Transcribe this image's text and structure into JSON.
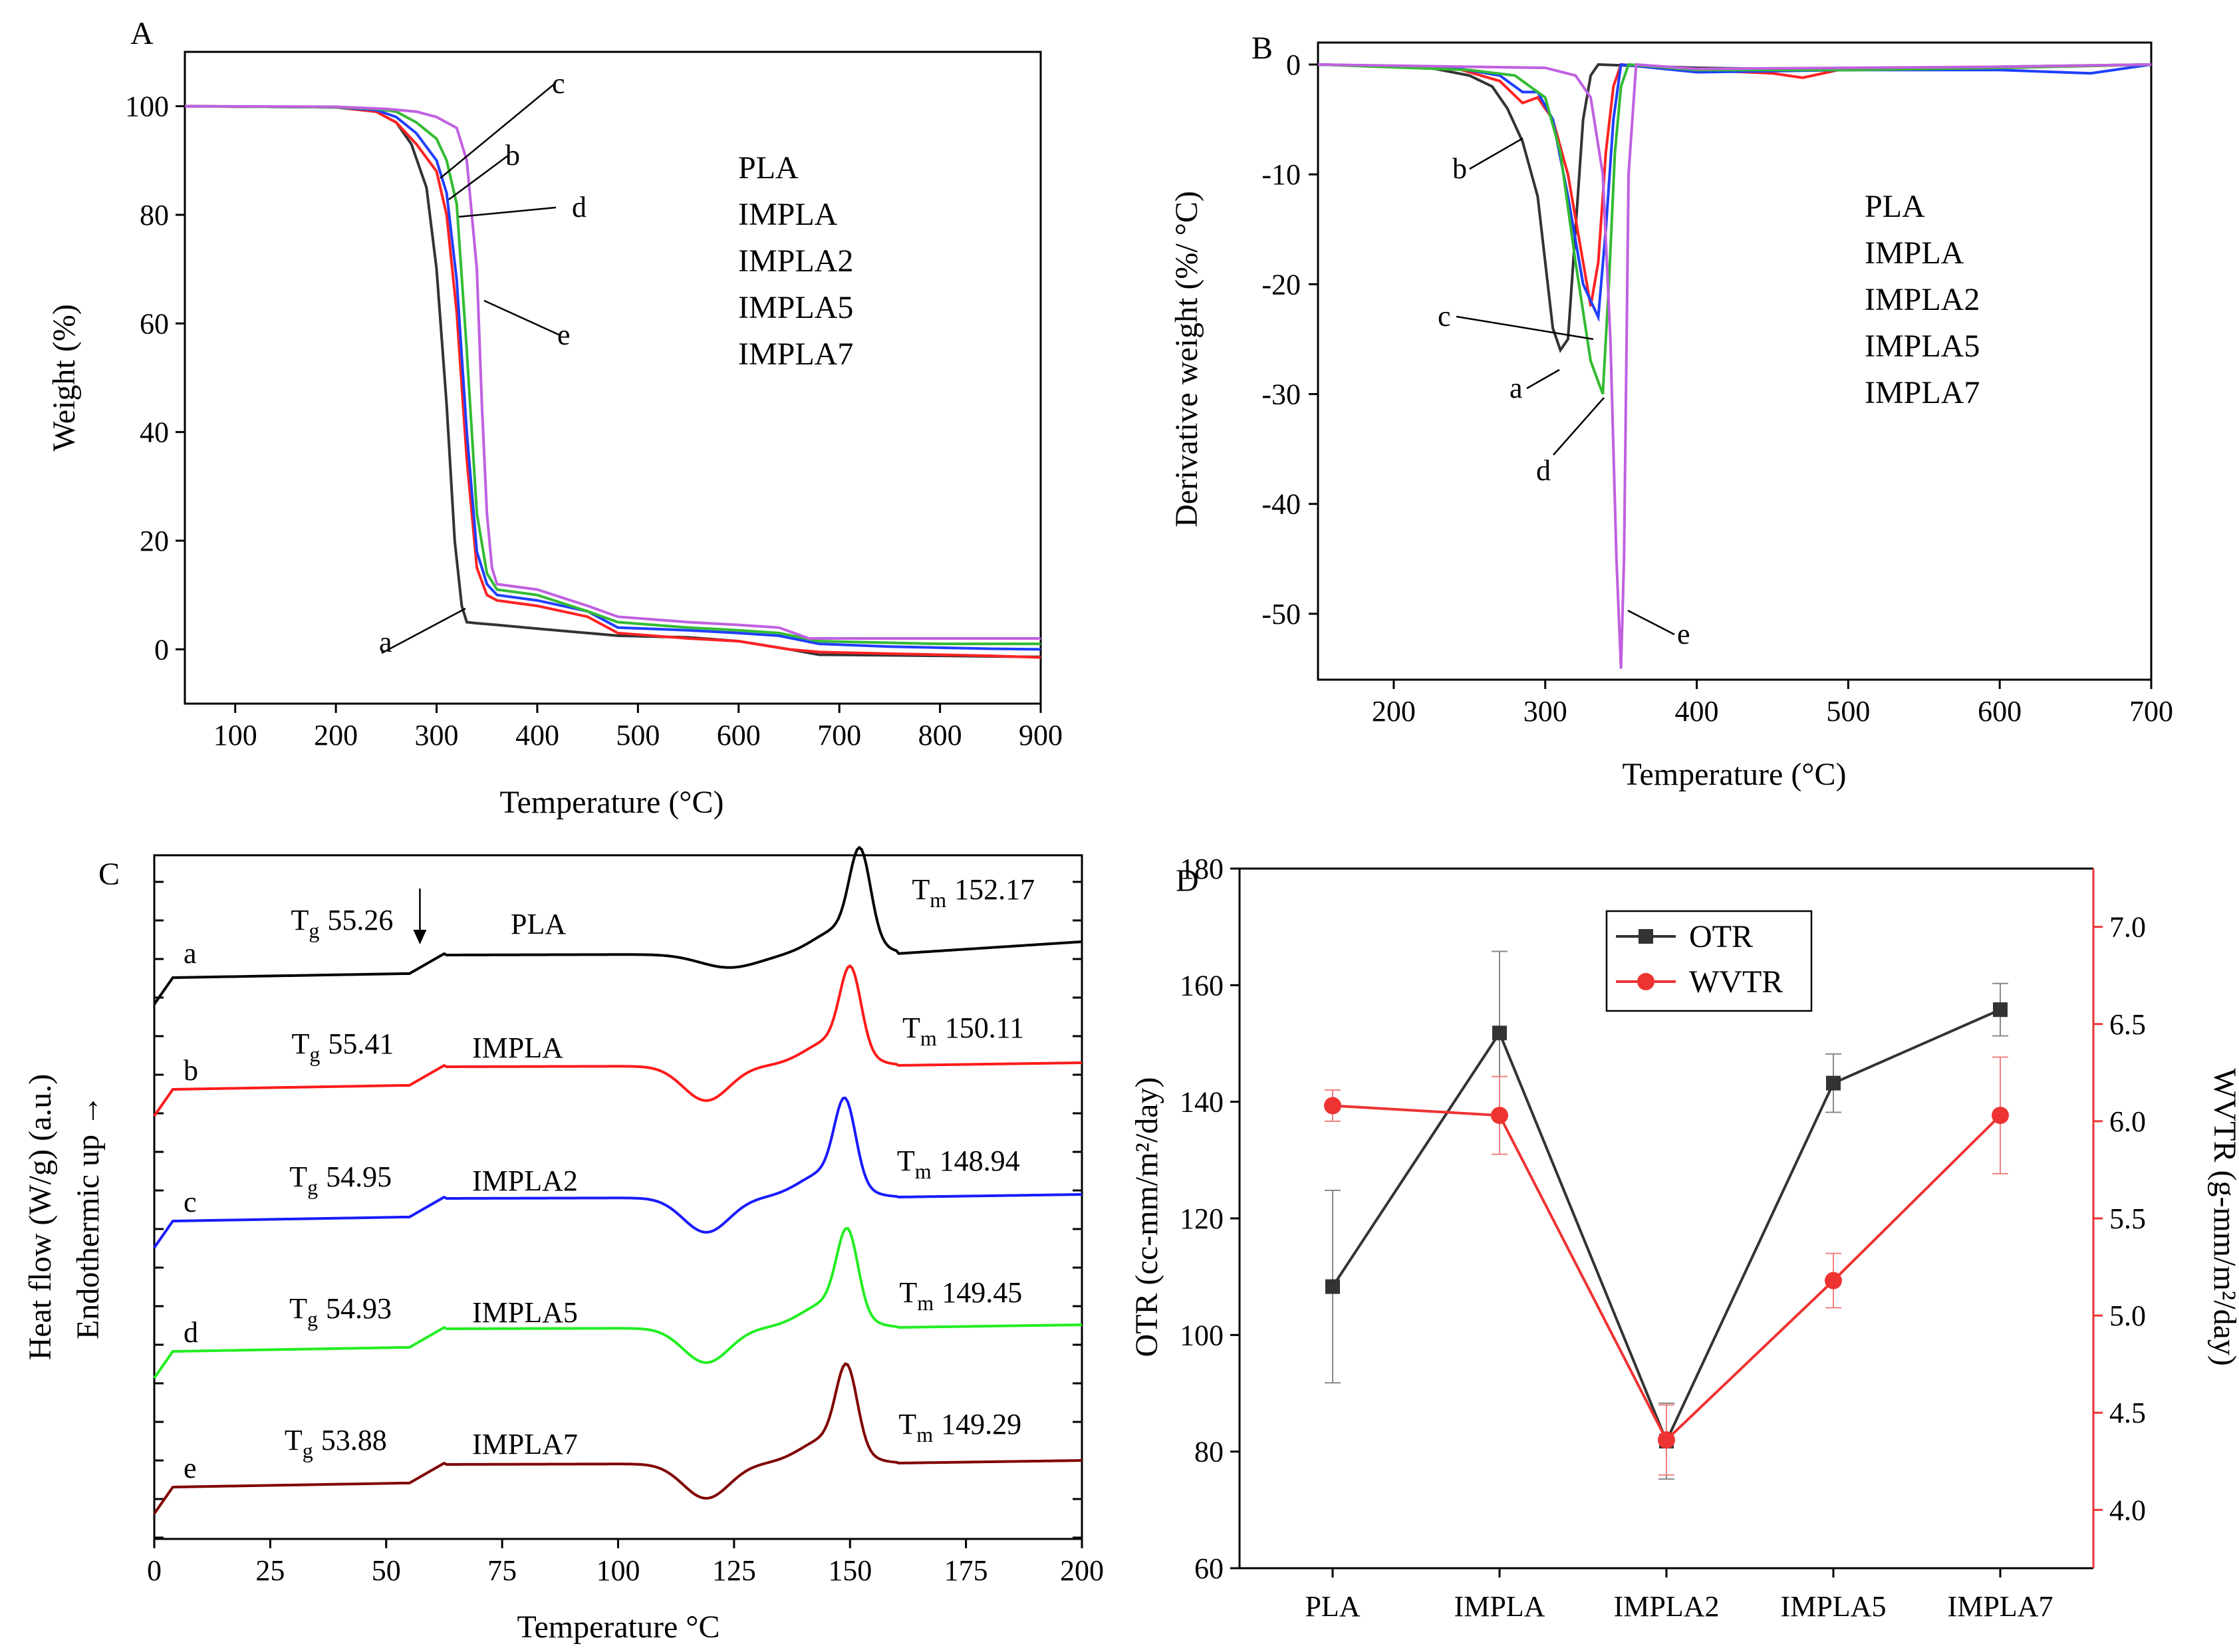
{
  "chart_data": [
    {
      "panel": "A",
      "type": "line",
      "xlabel": "Temperature (°C)",
      "ylabel": "Weight (%)",
      "xlim": [
        50,
        900
      ],
      "ylim": [
        -10,
        110
      ],
      "xticks": [
        100,
        200,
        300,
        400,
        500,
        600,
        700,
        800,
        900
      ],
      "yticks": [
        0,
        20,
        40,
        60,
        80,
        100
      ],
      "series": [
        {
          "name": "PLA",
          "color": "#333333",
          "x": [
            50,
            200,
            240,
            260,
            275,
            290,
            300,
            310,
            318,
            325,
            330,
            340,
            360,
            400,
            450,
            480,
            550,
            600,
            650,
            680,
            750,
            800,
            850,
            900
          ],
          "y": [
            100,
            99.8,
            99,
            97,
            93,
            85,
            70,
            45,
            20,
            8,
            5,
            4.8,
            4.5,
            3.8,
            3,
            2.5,
            2.2,
            1.5,
            0,
            -1,
            -1.1,
            -1.2,
            -1.3,
            -1.4
          ]
        },
        {
          "name": "IMPLA",
          "color": "#ff2222",
          "x": [
            50,
            200,
            240,
            260,
            280,
            300,
            310,
            320,
            330,
            340,
            350,
            360,
            400,
            450,
            480,
            550,
            600,
            650,
            680,
            750,
            800,
            850,
            900
          ],
          "y": [
            100,
            99.8,
            99,
            97,
            93,
            88,
            80,
            62,
            35,
            15,
            10,
            9,
            8,
            6,
            3,
            2,
            1.5,
            0,
            -0.5,
            -0.8,
            -1,
            -1.2,
            -1.5
          ]
        },
        {
          "name": "IMPLA2",
          "color": "#1f3fff",
          "x": [
            50,
            200,
            240,
            260,
            280,
            300,
            310,
            320,
            330,
            340,
            350,
            360,
            400,
            450,
            480,
            550,
            600,
            640,
            680,
            750,
            800,
            850,
            900
          ],
          "y": [
            100,
            99.8,
            99.3,
            98,
            95,
            90,
            84,
            68,
            40,
            18,
            12,
            10,
            9,
            7,
            4,
            3.5,
            3,
            2.5,
            1,
            0.5,
            0.3,
            0.1,
            0
          ]
        },
        {
          "name": "IMPLA5",
          "color": "#33bb33",
          "x": [
            50,
            200,
            240,
            260,
            280,
            300,
            310,
            320,
            330,
            340,
            350,
            360,
            400,
            450,
            480,
            550,
            600,
            640,
            680,
            750,
            800,
            850,
            900
          ],
          "y": [
            100,
            99.8,
            99.5,
            99,
            97,
            94,
            90,
            82,
            55,
            25,
            14,
            11,
            10,
            7,
            5,
            4,
            3.5,
            3,
            1.5,
            1.2,
            1,
            1,
            1
          ]
        },
        {
          "name": "IMPLA7",
          "color": "#c060e0",
          "x": [
            50,
            200,
            250,
            280,
            300,
            320,
            330,
            340,
            345,
            350,
            355,
            360,
            400,
            450,
            480,
            550,
            600,
            640,
            670,
            750,
            800,
            850,
            900
          ],
          "y": [
            100,
            99.9,
            99.5,
            99,
            98,
            96,
            90,
            70,
            45,
            25,
            15,
            12,
            11,
            8,
            6,
            5,
            4.5,
            4,
            2,
            2,
            2,
            2,
            2
          ]
        }
      ],
      "legend": [
        "PLA",
        "IMPLA",
        "IMPLA2",
        "IMPLA5",
        "IMPLA7"
      ],
      "annotations": [
        "a",
        "b",
        "c",
        "d",
        "e"
      ]
    },
    {
      "panel": "B",
      "type": "line",
      "xlabel": "Temperature (°C)",
      "ylabel": "Derivative weight (%/ °C)",
      "xlim": [
        150,
        700
      ],
      "ylim": [
        -56,
        2
      ],
      "xticks": [
        200,
        300,
        400,
        500,
        600,
        700
      ],
      "yticks": [
        0,
        -10,
        -20,
        -30,
        -40,
        -50
      ],
      "series": [
        {
          "name": "PLA",
          "color": "#333333",
          "x": [
            150,
            220,
            250,
            265,
            275,
            285,
            295,
            300,
            305,
            310,
            315,
            320,
            325,
            330,
            335,
            400,
            500,
            600,
            700
          ],
          "y": [
            0,
            -0.2,
            -1,
            -2,
            -4,
            -7,
            -12,
            -18,
            -24,
            -26,
            -25,
            -15,
            -5,
            -1,
            0,
            -0.3,
            -0.5,
            -0.2,
            0
          ]
        },
        {
          "name": "IMPLA",
          "color": "#ff2222",
          "x": [
            150,
            240,
            270,
            285,
            295,
            305,
            315,
            325,
            330,
            335,
            340,
            345,
            350,
            400,
            450,
            470,
            500,
            600,
            700
          ],
          "y": [
            0,
            -0.3,
            -1.5,
            -3.5,
            -3,
            -5,
            -10,
            -18,
            -22,
            -18,
            -8,
            -2,
            0,
            -0.5,
            -0.8,
            -1.2,
            -0.3,
            -0.3,
            0
          ]
        },
        {
          "name": "IMPLA2",
          "color": "#1f3fff",
          "x": [
            150,
            240,
            270,
            285,
            295,
            305,
            315,
            325,
            335,
            340,
            345,
            350,
            400,
            500,
            600,
            660,
            700
          ],
          "y": [
            0,
            -0.3,
            -1,
            -2.5,
            -2.5,
            -5,
            -12,
            -20,
            -23,
            -15,
            -5,
            0,
            -0.7,
            -0.5,
            -0.5,
            -0.8,
            0
          ]
        },
        {
          "name": "IMPLA5",
          "color": "#33bb33",
          "x": [
            150,
            250,
            280,
            300,
            310,
            320,
            330,
            338,
            342,
            346,
            350,
            355,
            400,
            500,
            600,
            700
          ],
          "y": [
            0,
            -0.5,
            -1,
            -3,
            -8,
            -18,
            -27,
            -30,
            -20,
            -8,
            -2,
            0,
            -0.5,
            -0.5,
            -0.3,
            0
          ]
        },
        {
          "name": "IMPLA7",
          "color": "#c060e0",
          "x": [
            150,
            300,
            320,
            330,
            338,
            343,
            347,
            350,
            352,
            355,
            360,
            400,
            500,
            600,
            700
          ],
          "y": [
            0,
            -0.3,
            -1,
            -3,
            -10,
            -25,
            -45,
            -55,
            -45,
            -10,
            0,
            -0.4,
            -0.3,
            -0.2,
            0
          ]
        }
      ],
      "legend": [
        "PLA",
        "IMPLA",
        "IMPLA2",
        "IMPLA5",
        "IMPLA7"
      ],
      "annotations": [
        "a",
        "b",
        "c",
        "d",
        "e"
      ]
    },
    {
      "panel": "C",
      "type": "line",
      "xlabel": "Temperature °C",
      "ylabel_line1": "Heat flow (W/g) (a.u.)",
      "ylabel_line2": "Endothermic up →",
      "xlim": [
        0,
        200
      ],
      "xticks": [
        0,
        25,
        50,
        75,
        100,
        125,
        150,
        175,
        200
      ],
      "series": [
        {
          "name": "PLA",
          "label": "a",
          "color": "#000000",
          "tg": "55.26",
          "tm": "152.17",
          "tg_x": 55.26,
          "tm_x": 152.17,
          "offset": 0
        },
        {
          "name": "IMPLA",
          "label": "b",
          "color": "#ff1a1a",
          "tg": "55.41",
          "tm": "150.11",
          "tg_x": 55.41,
          "tm_x": 150.11,
          "offset": 1
        },
        {
          "name": "IMPLA2",
          "label": "c",
          "color": "#1a1aff",
          "tg": "54.95",
          "tm": "148.94",
          "tg_x": 54.95,
          "tm_x": 148.94,
          "offset": 2
        },
        {
          "name": "IMPLA5",
          "label": "d",
          "color": "#22ee22",
          "tg": "54.93",
          "tm": "149.45",
          "tg_x": 54.93,
          "tm_x": 149.45,
          "offset": 3
        },
        {
          "name": "IMPLA7",
          "label": "e",
          "color": "#800000",
          "tg": "53.88",
          "tm": "149.29",
          "tg_x": 53.88,
          "tm_x": 149.29,
          "offset": 4
        }
      ],
      "tg_prefix": "T",
      "tg_sub": "g",
      "tm_prefix": "T",
      "tm_sub": "m"
    },
    {
      "panel": "D",
      "type": "line",
      "categories": [
        "PLA",
        "IMPLA",
        "IMPLA2",
        "IMPLA5",
        "IMPLA7"
      ],
      "ylabel_left": "OTR (cc-mm/m²/day)",
      "ylabel_right": "WVTR (g-mm/m²/day)",
      "ylim_left": [
        60,
        180
      ],
      "yticks_left": [
        60,
        80,
        100,
        120,
        140,
        160,
        180
      ],
      "ylim_right": [
        3.7,
        7.3
      ],
      "yticks_right": [
        4.0,
        4.5,
        5.0,
        5.5,
        6.0,
        6.5,
        7.0
      ],
      "series": [
        {
          "name": "OTR",
          "axis": "left",
          "color": "#333333",
          "marker": "square",
          "values": [
            108.3,
            151.8,
            81.8,
            143.2,
            155.8
          ],
          "errors": [
            16.5,
            14,
            6.5,
            5,
            4.5
          ]
        },
        {
          "name": "WVTR",
          "axis": "right",
          "color": "#ee3333",
          "marker": "circle",
          "values": [
            6.08,
            6.03,
            4.36,
            5.18,
            6.03
          ],
          "errors": [
            0.08,
            0.2,
            0.18,
            0.14,
            0.3
          ]
        }
      ],
      "legend": [
        "OTR",
        "WVTR"
      ]
    }
  ],
  "labels": {
    "panelA": "A",
    "panelB": "B",
    "panelC": "C",
    "panelD": "D"
  }
}
